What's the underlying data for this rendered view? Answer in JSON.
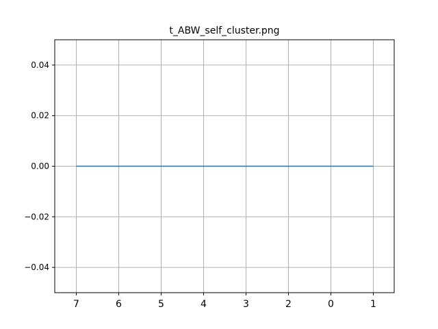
{
  "chart_data": {
    "type": "line",
    "title": "t_ABW_self_cluster.png",
    "xlabel": "",
    "ylabel": "",
    "categories": [
      "7",
      "6",
      "5",
      "4",
      "3",
      "2",
      "0",
      "1"
    ],
    "series": [
      {
        "values": [
          0,
          0,
          0,
          0,
          0,
          0,
          0,
          0
        ]
      }
    ],
    "ylim": [
      -0.05,
      0.05
    ],
    "yticks": [
      -0.04,
      -0.02,
      0.0,
      0.02,
      0.04
    ],
    "ytick_labels": [
      "−0.04",
      "−0.02",
      "0.00",
      "0.02",
      "0.04"
    ],
    "grid": true,
    "colors": {
      "line": "#1f77b4",
      "grid": "#b0b0b0",
      "axes": "#000000"
    }
  }
}
